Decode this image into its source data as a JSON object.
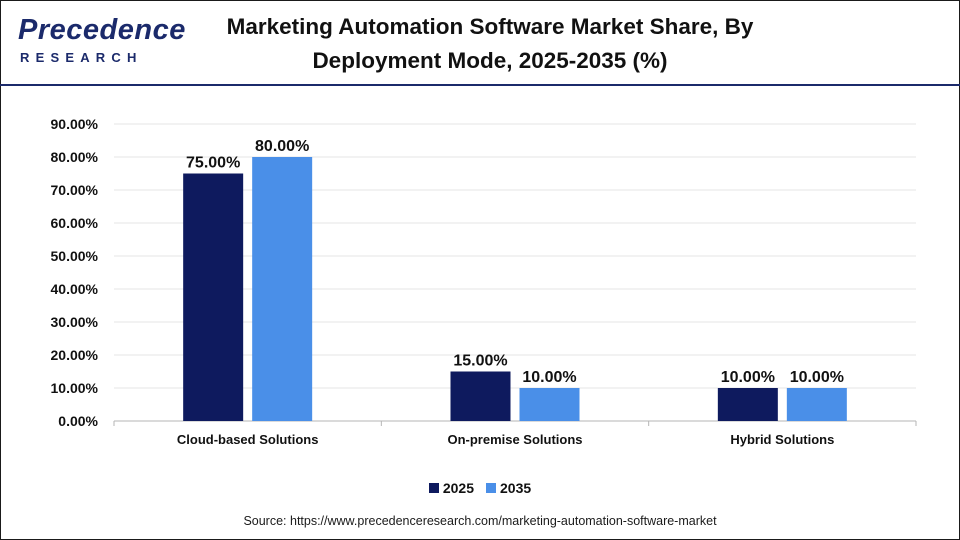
{
  "brand": {
    "name": "Precedence",
    "tagline": "RESEARCH"
  },
  "chart_data": {
    "type": "bar",
    "title": "Marketing Automation Software Market Share, By Deployment Mode, 2025-2035 (%)",
    "categories": [
      "Cloud-based Solutions",
      "On-premise Solutions",
      "Hybrid Solutions"
    ],
    "series": [
      {
        "name": "2025",
        "values": [
          75.0,
          15.0,
          10.0
        ],
        "color": "#0e1a5e"
      },
      {
        "name": "2035",
        "values": [
          80.0,
          10.0,
          10.0
        ],
        "color": "#4a8fe8"
      }
    ],
    "data_labels": [
      [
        "75.00%",
        "15.00%",
        "10.00%"
      ],
      [
        "80.00%",
        "10.00%",
        "10.00%"
      ]
    ],
    "yticks": [
      "0.00%",
      "10.00%",
      "20.00%",
      "30.00%",
      "40.00%",
      "50.00%",
      "60.00%",
      "70.00%",
      "80.00%",
      "90.00%"
    ],
    "ylim": [
      0,
      90
    ],
    "grid": true,
    "legend_position": "bottom-center",
    "xlabel": "",
    "ylabel": ""
  },
  "source": "Source: https://www.precedenceresearch.com/marketing-automation-software-market"
}
